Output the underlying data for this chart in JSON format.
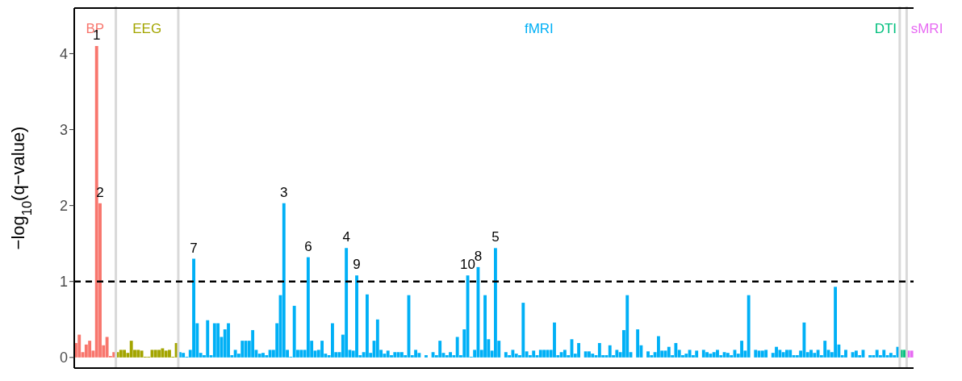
{
  "chart_data": {
    "type": "bar",
    "ylabel": "−log$_{10}$(q−value)",
    "tick_labels": "y",
    "ylim": [
      -0.14,
      4.6
    ],
    "yticks": [
      0,
      1,
      2,
      3,
      4
    ],
    "categories": [
      null,
      null,
      null,
      null,
      null,
      null,
      null,
      null,
      null,
      null,
      null,
      null,
      null,
      null,
      null,
      null,
      null,
      null,
      null,
      null,
      null,
      null,
      null,
      null,
      null,
      null,
      null,
      null,
      null,
      null,
      null,
      null,
      null,
      null,
      null,
      null,
      null,
      null,
      null,
      null,
      null,
      null,
      null,
      null,
      null,
      null,
      null,
      null,
      null,
      null,
      null,
      null,
      null,
      null,
      null,
      null,
      null,
      null,
      null,
      null,
      null,
      null,
      null,
      null,
      null,
      null,
      null,
      null,
      null,
      null,
      null,
      null,
      null,
      null,
      null,
      null,
      null,
      null,
      null,
      null,
      null,
      null,
      null,
      null,
      null,
      null,
      null,
      null,
      null,
      null,
      null,
      null,
      null,
      null,
      null,
      null,
      null,
      null,
      null,
      null,
      null,
      null,
      null,
      null,
      null,
      null,
      null,
      null,
      null,
      null,
      null,
      null,
      null,
      null,
      null,
      null,
      null,
      null,
      null,
      null,
      null,
      null,
      null,
      null,
      null,
      null,
      null,
      null,
      null,
      null,
      null,
      null,
      null,
      null,
      null,
      null,
      null,
      null,
      null,
      null,
      null,
      null,
      null,
      null,
      null,
      null,
      null,
      null,
      null,
      null,
      null,
      null,
      null,
      null,
      null,
      null,
      null,
      null,
      null,
      null,
      null,
      null,
      null,
      null,
      null,
      null,
      null,
      null,
      null,
      null,
      null,
      null,
      null,
      null,
      null,
      null,
      null,
      null,
      null,
      null,
      null,
      null,
      null,
      null,
      null,
      null,
      null,
      null,
      null,
      null,
      null,
      null,
      null,
      null,
      null,
      null,
      null,
      null,
      null,
      null,
      null,
      null,
      null,
      null,
      null,
      null,
      null,
      null,
      null,
      null,
      null,
      null,
      null,
      null,
      null,
      null,
      null,
      null,
      null,
      null,
      null,
      null,
      null,
      null,
      null,
      null,
      null,
      null,
      null,
      null,
      null,
      null,
      null,
      null,
      null,
      null,
      null,
      null,
      null,
      null,
      null,
      null
    ],
    "values": [
      0.19,
      0.3,
      0.07,
      0.17,
      0.22,
      0.09,
      4.1,
      2.03,
      0.16,
      0.27,
      0.02,
      0.07,
      0.07,
      0.1,
      0.1,
      0.06,
      0.22,
      0.1,
      0.1,
      0.09,
      0.01,
      0.01,
      0.1,
      0.1,
      0.1,
      0.12,
      0.09,
      0.1,
      0.01,
      0.19,
      0.07,
      0.06,
      0.01,
      0.1,
      1.3,
      0.45,
      0.06,
      0.03,
      0.49,
      0.03,
      0.45,
      0.45,
      0.27,
      0.37,
      0.45,
      0.03,
      0.1,
      0.05,
      0.22,
      0.22,
      0.22,
      0.36,
      0.1,
      0.05,
      0.06,
      0.03,
      0.1,
      0.1,
      0.45,
      0.82,
      2.03,
      0.1,
      0.01,
      0.68,
      0.1,
      0.1,
      0.1,
      1.32,
      0.22,
      0.09,
      0.1,
      0.22,
      0.05,
      0.03,
      0.45,
      0.07,
      0.07,
      0.3,
      1.44,
      0.1,
      0.09,
      1.08,
      0.03,
      0.07,
      0.83,
      0.06,
      0.22,
      0.5,
      0.1,
      0.05,
      0.09,
      0.03,
      0.07,
      0.07,
      0.07,
      0.03,
      0.82,
      0.03,
      0.1,
      0.06,
      0,
      0.03,
      0,
      0.07,
      0.03,
      0.22,
      0.06,
      0.03,
      0.07,
      0.03,
      0.27,
      0.03,
      0.37,
      1.08,
      0.01,
      0.1,
      1.19,
      0.1,
      0.82,
      0.24,
      0.09,
      1.44,
      0.22,
      0,
      0.07,
      0.03,
      0.1,
      0.05,
      0.03,
      0.72,
      0.08,
      0.03,
      0.09,
      0.03,
      0.1,
      0.1,
      0.1,
      0.1,
      0.46,
      0.03,
      0.07,
      0.1,
      0.03,
      0.24,
      0.05,
      0.19,
      0,
      0.08,
      0.08,
      0.05,
      0.03,
      0.19,
      0.03,
      0.03,
      0.16,
      0.03,
      0.1,
      0.07,
      0.36,
      0.82,
      0.07,
      0,
      0.37,
      0.16,
      0,
      0.08,
      0.03,
      0.07,
      0.28,
      0.09,
      0.09,
      0.14,
      0.03,
      0.19,
      0.1,
      0.03,
      0.05,
      0.1,
      0.03,
      0.09,
      0,
      0.1,
      0.07,
      0.05,
      0.07,
      0.1,
      0.03,
      0.07,
      0.06,
      0.03,
      0.1,
      0.05,
      0.22,
      0.09,
      0.82,
      0,
      0.1,
      0.09,
      0.09,
      0.1,
      0,
      0.06,
      0.14,
      0.1,
      0.07,
      0.1,
      0.1,
      0.03,
      0.03,
      0.09,
      0.46,
      0.07,
      0.1,
      0.06,
      0.1,
      0.03,
      0.22,
      0.1,
      0.07,
      0.93,
      0.17,
      0.03,
      0.1,
      0,
      0.07,
      0.09,
      0.03,
      0.1,
      0,
      0.03,
      0.03,
      0.1,
      0.03,
      0.1,
      0.03,
      0.06,
      0.03,
      0.14,
      0.1,
      0.1,
      0.09,
      0.09
    ],
    "colors": [
      "#f8766d",
      "#f8766d",
      "#f8766d",
      "#f8766d",
      "#f8766d",
      "#f8766d",
      "#f8766d",
      "#f8766d",
      "#f8766d",
      "#f8766d",
      "#f8766d",
      "#f8766d",
      "#a3a500",
      "#a3a500",
      "#a3a500",
      "#a3a500",
      "#a3a500",
      "#a3a500",
      "#a3a500",
      "#a3a500",
      "#a3a500",
      "#a3a500",
      "#a3a500",
      "#a3a500",
      "#a3a500",
      "#a3a500",
      "#a3a500",
      "#a3a500",
      "#a3a500",
      "#a3a500",
      "#00b0f6",
      "#00b0f6",
      "#00b0f6",
      "#00b0f6",
      "#00b0f6",
      "#00b0f6",
      "#00b0f6",
      "#00b0f6",
      "#00b0f6",
      "#00b0f6",
      "#00b0f6",
      "#00b0f6",
      "#00b0f6",
      "#00b0f6",
      "#00b0f6",
      "#00b0f6",
      "#00b0f6",
      "#00b0f6",
      "#00b0f6",
      "#00b0f6",
      "#00b0f6",
      "#00b0f6",
      "#00b0f6",
      "#00b0f6",
      "#00b0f6",
      "#00b0f6",
      "#00b0f6",
      "#00b0f6",
      "#00b0f6",
      "#00b0f6",
      "#00b0f6",
      "#00b0f6",
      "#00b0f6",
      "#00b0f6",
      "#00b0f6",
      "#00b0f6",
      "#00b0f6",
      "#00b0f6",
      "#00b0f6",
      "#00b0f6",
      "#00b0f6",
      "#00b0f6",
      "#00b0f6",
      "#00b0f6",
      "#00b0f6",
      "#00b0f6",
      "#00b0f6",
      "#00b0f6",
      "#00b0f6",
      "#00b0f6",
      "#00b0f6",
      "#00b0f6",
      "#00b0f6",
      "#00b0f6",
      "#00b0f6",
      "#00b0f6",
      "#00b0f6",
      "#00b0f6",
      "#00b0f6",
      "#00b0f6",
      "#00b0f6",
      "#00b0f6",
      "#00b0f6",
      "#00b0f6",
      "#00b0f6",
      "#00b0f6",
      "#00b0f6",
      "#00b0f6",
      "#00b0f6",
      "#00b0f6",
      "#00b0f6",
      "#00b0f6",
      "#00b0f6",
      "#00b0f6",
      "#00b0f6",
      "#00b0f6",
      "#00b0f6",
      "#00b0f6",
      "#00b0f6",
      "#00b0f6",
      "#00b0f6",
      "#00b0f6",
      "#00b0f6",
      "#00b0f6",
      "#00b0f6",
      "#00b0f6",
      "#00b0f6",
      "#00b0f6",
      "#00b0f6",
      "#00b0f6",
      "#00b0f6",
      "#00b0f6",
      "#00b0f6",
      "#00b0f6",
      "#00b0f6",
      "#00b0f6",
      "#00b0f6",
      "#00b0f6",
      "#00b0f6",
      "#00b0f6",
      "#00b0f6",
      "#00b0f6",
      "#00b0f6",
      "#00b0f6",
      "#00b0f6",
      "#00b0f6",
      "#00b0f6",
      "#00b0f6",
      "#00b0f6",
      "#00b0f6",
      "#00b0f6",
      "#00b0f6",
      "#00b0f6",
      "#00b0f6",
      "#00b0f6",
      "#00b0f6",
      "#00b0f6",
      "#00b0f6",
      "#00b0f6",
      "#00b0f6",
      "#00b0f6",
      "#00b0f6",
      "#00b0f6",
      "#00b0f6",
      "#00b0f6",
      "#00b0f6",
      "#00b0f6",
      "#00b0f6",
      "#00b0f6",
      "#00b0f6",
      "#00b0f6",
      "#00b0f6",
      "#00b0f6",
      "#00b0f6",
      "#00b0f6",
      "#00b0f6",
      "#00b0f6",
      "#00b0f6",
      "#00b0f6",
      "#00b0f6",
      "#00b0f6",
      "#00b0f6",
      "#00b0f6",
      "#00b0f6",
      "#00b0f6",
      "#00b0f6",
      "#00b0f6",
      "#00b0f6",
      "#00b0f6",
      "#00b0f6",
      "#00b0f6",
      "#00b0f6",
      "#00b0f6",
      "#00b0f6",
      "#00b0f6",
      "#00b0f6",
      "#00b0f6",
      "#00b0f6",
      "#00b0f6",
      "#00b0f6",
      "#00b0f6",
      "#00b0f6",
      "#00b0f6",
      "#00b0f6",
      "#00b0f6",
      "#00b0f6",
      "#00b0f6",
      "#00b0f6",
      "#00b0f6",
      "#00b0f6",
      "#00b0f6",
      "#00b0f6",
      "#00b0f6",
      "#00b0f6",
      "#00b0f6",
      "#00b0f6",
      "#00b0f6",
      "#00b0f6",
      "#00b0f6",
      "#00b0f6",
      "#00b0f6",
      "#00b0f6",
      "#00b0f6",
      "#00b0f6",
      "#00b0f6",
      "#00b0f6",
      "#00b0f6",
      "#00b0f6",
      "#00b0f6",
      "#00b0f6",
      "#00b0f6",
      "#00b0f6",
      "#00b0f6",
      "#00b0f6",
      "#00b0f6",
      "#00b0f6",
      "#00b0f6",
      "#00b0f6",
      "#00b0f6",
      "#00b0f6",
      "#00b0f6",
      "#00b0f6",
      "#00b0f6",
      "#00b0f6",
      "#00b0f6",
      "#00b0f6",
      "#00b0f6",
      "#00b0f6",
      "#00bf7d",
      "#00bf7d",
      "#e76bf3",
      "#e76bf3"
    ],
    "ref_lines": [
      {
        "axis": "y",
        "value": 1,
        "color": "#000000",
        "line_style": "dashed"
      },
      {
        "axis": "x",
        "color": "#d9d9d9"
      },
      {
        "axis": "x",
        "color": "#d9d9d9"
      },
      {
        "axis": "x",
        "color": "#d9d9d9"
      },
      {
        "axis": "x",
        "color": "#d9d9d9"
      }
    ],
    "annotations": [
      "BP",
      "EEG",
      "fMRI",
      "DTI",
      "sMRI",
      {
        "text": "1",
        "y": 4.1
      },
      {
        "text": "2",
        "y": 2.03
      },
      {
        "text": "7",
        "y": 1.3
      },
      {
        "text": "3",
        "y": 2.03
      },
      {
        "text": "6",
        "y": 1.32
      },
      {
        "text": "4",
        "y": 1.44
      },
      {
        "text": "9",
        "y": 1.08
      },
      {
        "text": "10",
        "y": 1.08
      },
      {
        "text": "8",
        "y": 1.19
      },
      {
        "text": "5",
        "y": 1.44
      }
    ]
  }
}
